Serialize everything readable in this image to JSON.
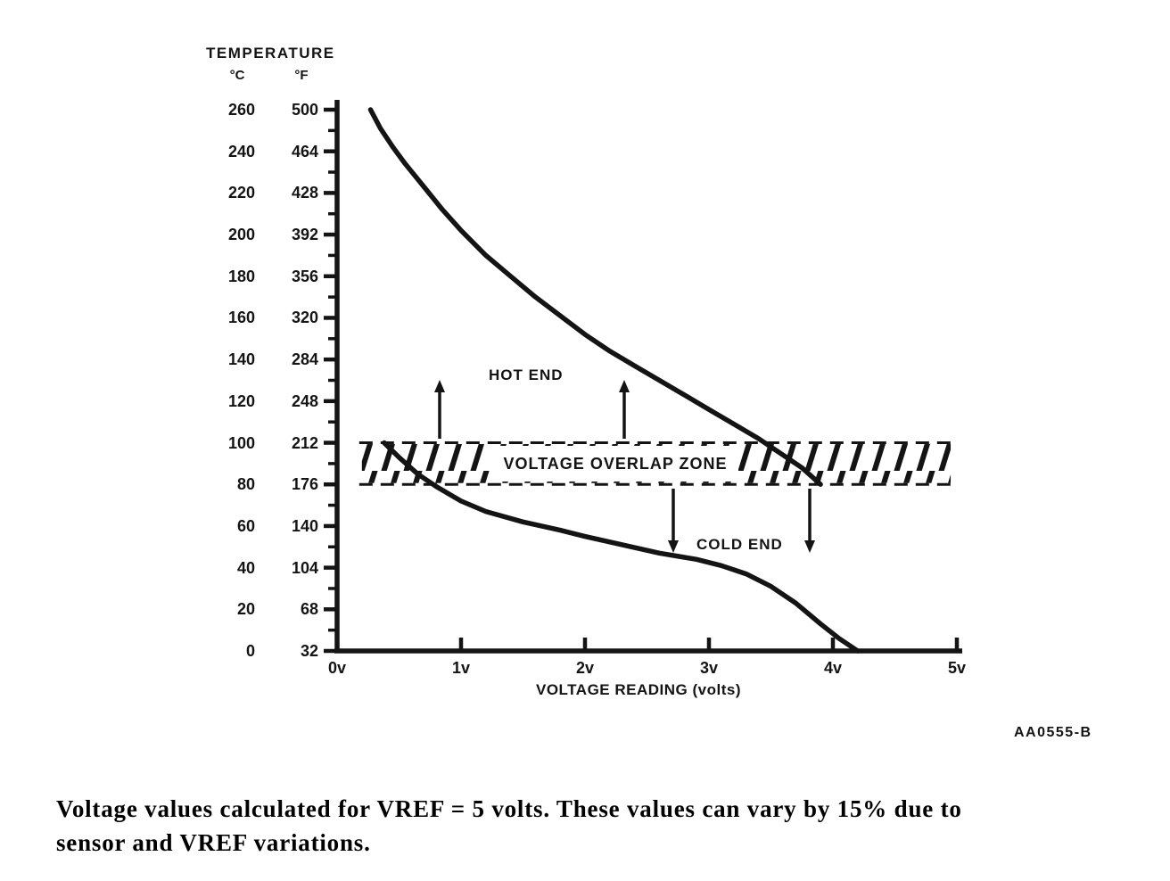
{
  "chart_data": {
    "type": "line",
    "xlabel": "VOLTAGE READING (volts)",
    "ylabel": "TEMPERATURE",
    "y_axis_units": [
      "°C",
      "°F"
    ],
    "xlim_volts": [
      0,
      5
    ],
    "ylim_celsius": [
      0,
      260
    ],
    "x_ticks": [
      {
        "v": 0,
        "label": "0v"
      },
      {
        "v": 1,
        "label": "1v"
      },
      {
        "v": 2,
        "label": "2v"
      },
      {
        "v": 3,
        "label": "3v"
      },
      {
        "v": 4,
        "label": "4v"
      },
      {
        "v": 5,
        "label": "5v"
      }
    ],
    "y_ticks": [
      {
        "value": 260,
        "c": "260",
        "f": "500"
      },
      {
        "value": 240,
        "c": "240",
        "f": "464"
      },
      {
        "value": 220,
        "c": "220",
        "f": "428"
      },
      {
        "value": 200,
        "c": "200",
        "f": "392"
      },
      {
        "value": 180,
        "c": "180",
        "f": "356"
      },
      {
        "value": 160,
        "c": "160",
        "f": "320"
      },
      {
        "value": 140,
        "c": "140",
        "f": "284"
      },
      {
        "value": 120,
        "c": "120",
        "f": "248"
      },
      {
        "value": 100,
        "c": "100",
        "f": "212"
      },
      {
        "value": 80,
        "c": "80",
        "f": "176"
      },
      {
        "value": 60,
        "c": "60",
        "f": "140"
      },
      {
        "value": 40,
        "c": "40",
        "f": "104"
      },
      {
        "value": 20,
        "c": "20",
        "f": "68"
      },
      {
        "value": 0,
        "c": "0",
        "f": "32"
      }
    ],
    "series": [
      {
        "name": "HOT END",
        "points": [
          [
            0.27,
            260
          ],
          [
            0.35,
            251
          ],
          [
            0.45,
            242
          ],
          [
            0.55,
            234
          ],
          [
            0.7,
            223
          ],
          [
            0.85,
            212
          ],
          [
            1.0,
            202
          ],
          [
            1.2,
            190
          ],
          [
            1.4,
            180
          ],
          [
            1.6,
            170
          ],
          [
            1.8,
            161
          ],
          [
            2.0,
            152
          ],
          [
            2.2,
            144
          ],
          [
            2.4,
            137
          ],
          [
            2.6,
            130
          ],
          [
            2.8,
            123
          ],
          [
            3.0,
            116
          ],
          [
            3.2,
            109
          ],
          [
            3.4,
            102
          ],
          [
            3.6,
            94
          ],
          [
            3.75,
            88
          ],
          [
            3.9,
            80
          ]
        ]
      },
      {
        "name": "COLD END",
        "points": [
          [
            0.38,
            100
          ],
          [
            0.5,
            93
          ],
          [
            0.65,
            85
          ],
          [
            0.8,
            79
          ],
          [
            1.0,
            72
          ],
          [
            1.2,
            67
          ],
          [
            1.5,
            62
          ],
          [
            1.8,
            58
          ],
          [
            2.0,
            55
          ],
          [
            2.3,
            51
          ],
          [
            2.6,
            47
          ],
          [
            2.9,
            44
          ],
          [
            3.1,
            41
          ],
          [
            3.3,
            37
          ],
          [
            3.5,
            31
          ],
          [
            3.7,
            23
          ],
          [
            3.9,
            13
          ],
          [
            4.05,
            6
          ],
          [
            4.2,
            0
          ]
        ]
      }
    ],
    "overlap_zone": {
      "label": "VOLTAGE OVERLAP ZONE",
      "temp_range_c": [
        80,
        100
      ],
      "x_range_v": [
        0.2,
        4.95
      ]
    },
    "annotations": {
      "hot_label": "HOT END",
      "cold_label": "COLD END"
    }
  },
  "figure": {
    "code": "AA0555-B"
  },
  "caption": {
    "lines": [
      "Voltage values calculated for VREF = 5 volts. These values can vary by 15% due to",
      "sensor and VREF variations."
    ]
  }
}
